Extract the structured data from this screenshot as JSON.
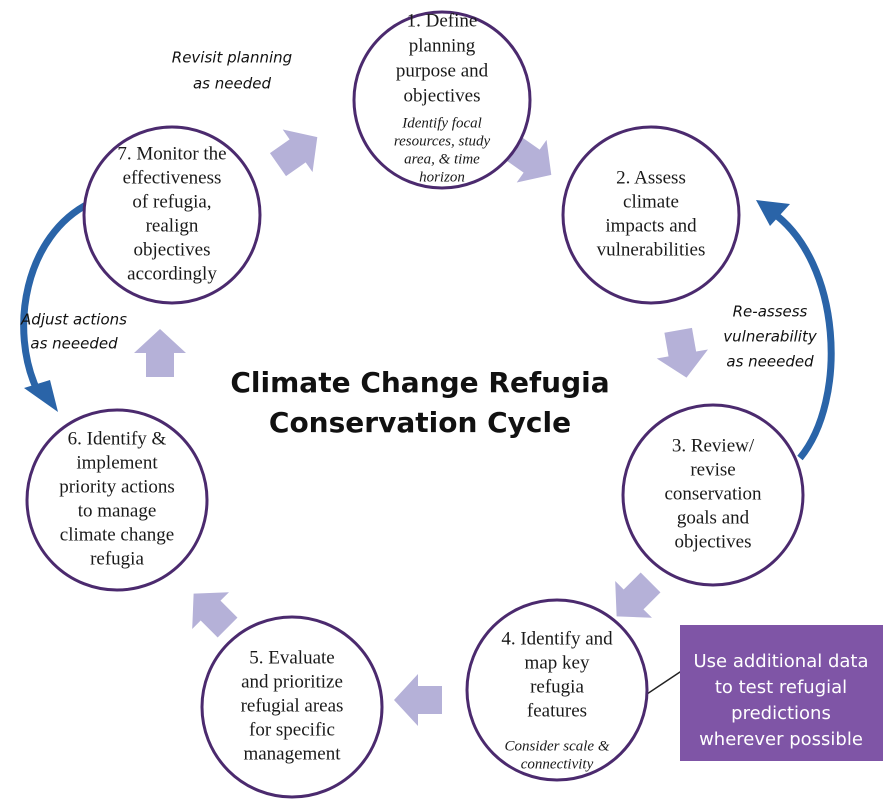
{
  "title": [
    "Climate Change Refugia",
    "Conservation Cycle"
  ],
  "nodes": [
    {
      "lines": [
        "1. Define",
        "planning",
        "purpose and",
        "objectives"
      ],
      "note": [
        "Identify focal",
        "resources, study",
        "area, & time",
        "horizon"
      ]
    },
    {
      "lines": [
        "2. Assess",
        "climate",
        "impacts and",
        "vulnerabilities"
      ]
    },
    {
      "lines": [
        "3. Review/",
        "revise",
        "conservation",
        "goals and",
        "objectives"
      ]
    },
    {
      "lines": [
        "4. Identify and",
        "map key",
        "refugia",
        "features"
      ],
      "note": [
        "Consider scale &",
        "connectivity"
      ]
    },
    {
      "lines": [
        "5. Evaluate",
        "and prioritize",
        "refugial areas",
        "for specific",
        "management"
      ]
    },
    {
      "lines": [
        "6. Identify &",
        "implement",
        "priority actions",
        "to manage",
        "climate change",
        "refugia"
      ]
    },
    {
      "lines": [
        "7. Monitor the",
        "effectiveness",
        "of refugia,",
        "realign",
        "objectives",
        "accordingly"
      ]
    }
  ],
  "annotations": [
    {
      "lines": [
        "Revisit planning",
        "as needed"
      ]
    },
    {
      "lines": [
        "Re-assess",
        "vulnerability",
        "as neeeded"
      ]
    },
    {
      "lines": [
        "Adjust actions",
        "as neeeded"
      ]
    }
  ],
  "callout": {
    "lines": [
      "Use additional data",
      "to test refugial",
      "predictions",
      "wherever possible"
    ]
  }
}
